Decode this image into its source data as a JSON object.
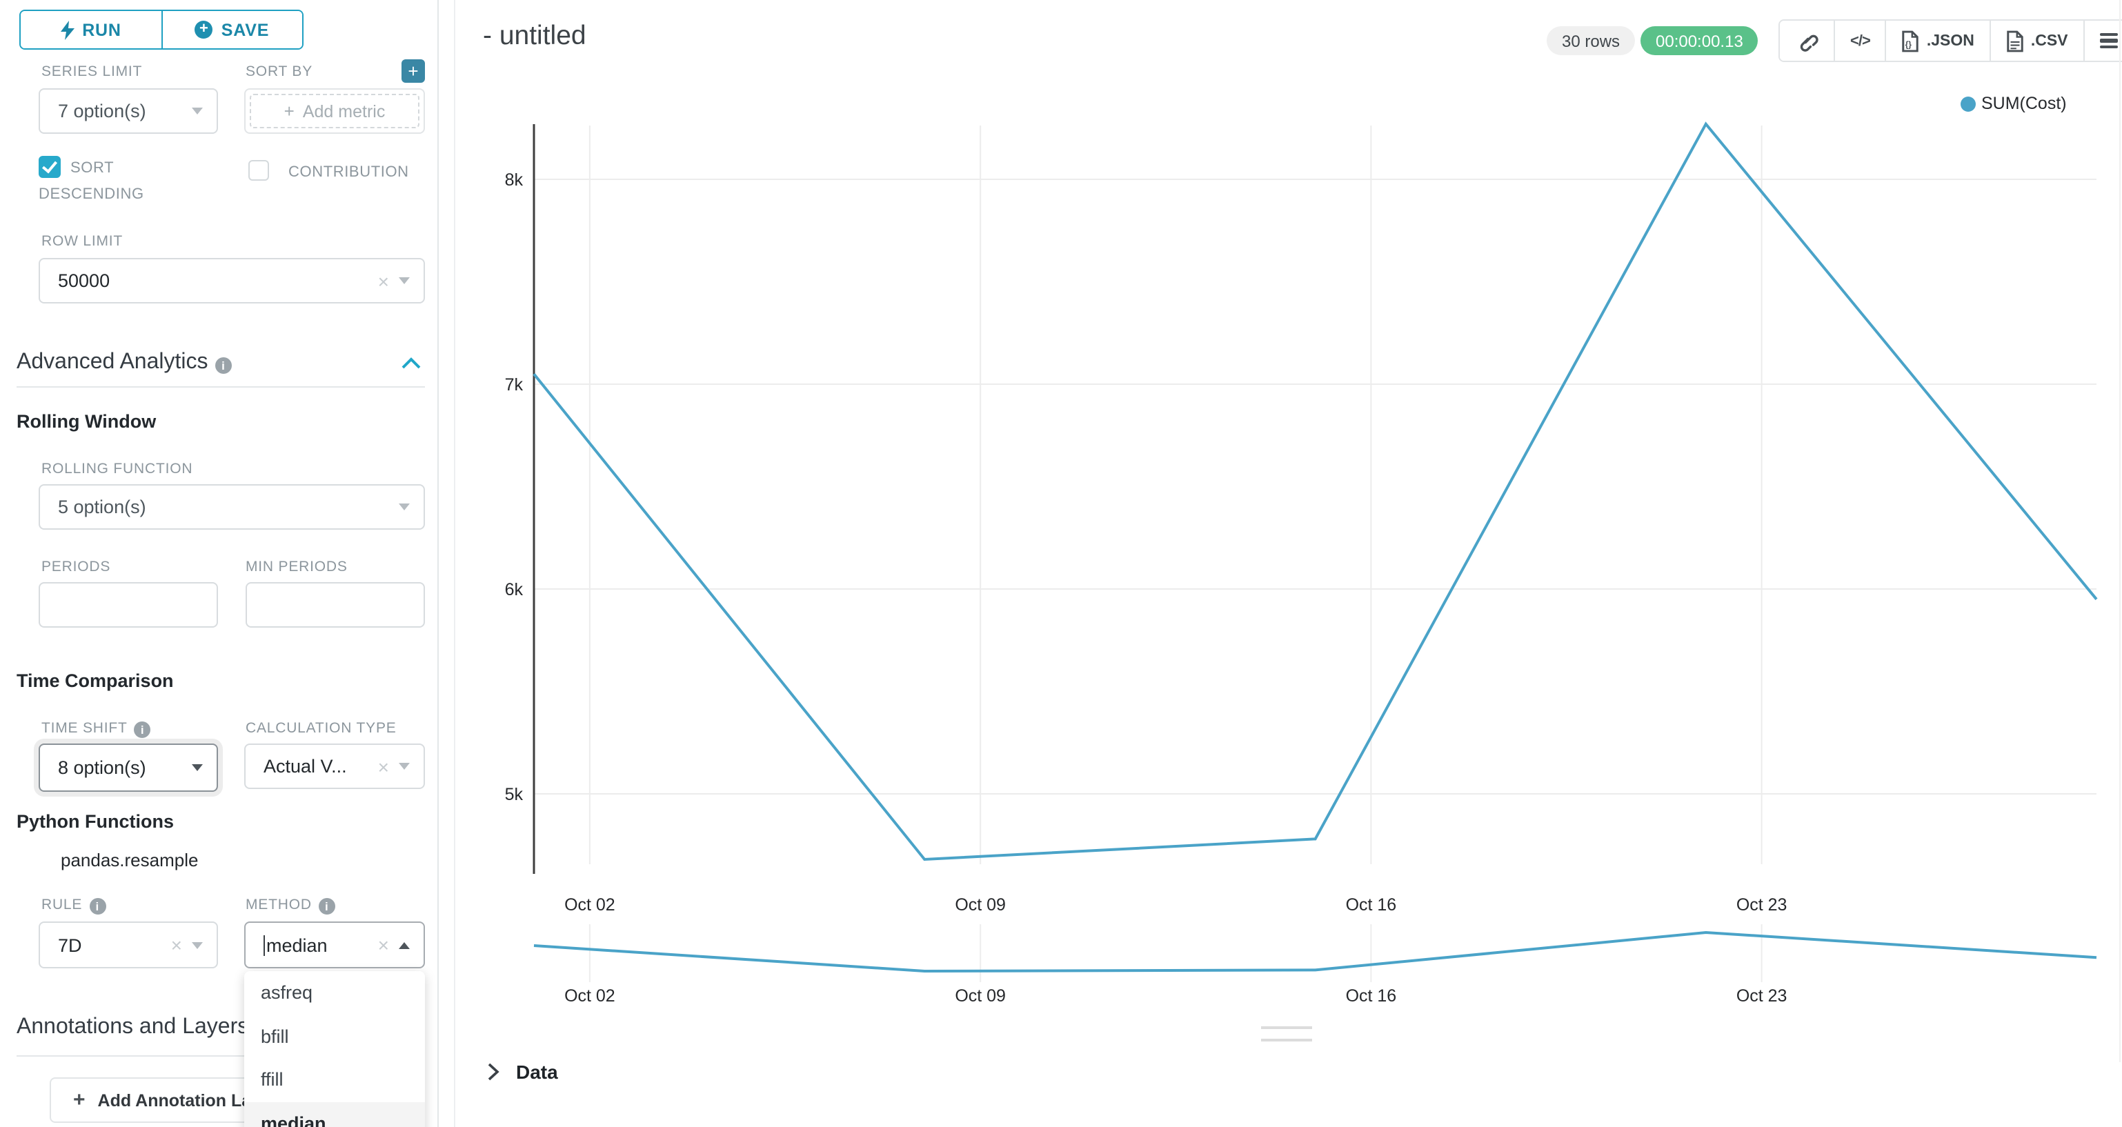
{
  "toolbar": {
    "run": "RUN",
    "save": "SAVE"
  },
  "controls": {
    "series_limit": {
      "label": "SERIES LIMIT",
      "value": "7 option(s)"
    },
    "sort_by": {
      "label": "SORT BY",
      "placeholder": "Add metric"
    },
    "sort_descending": {
      "label": "SORT DESCENDING",
      "checked": true
    },
    "contribution": {
      "label": "CONTRIBUTION",
      "checked": false
    },
    "row_limit": {
      "label": "ROW LIMIT",
      "value": "50000"
    }
  },
  "advanced": {
    "title": "Advanced Analytics",
    "rolling_title": "Rolling Window",
    "rolling_function": {
      "label": "ROLLING FUNCTION",
      "value": "5 option(s)"
    },
    "periods": {
      "label": "PERIODS",
      "value": ""
    },
    "min_periods": {
      "label": "MIN PERIODS",
      "value": ""
    },
    "time_comparison_title": "Time Comparison",
    "time_shift": {
      "label": "TIME SHIFT",
      "value": "8 option(s)"
    },
    "calculation_type": {
      "label": "CALCULATION TYPE",
      "value": "Actual V..."
    },
    "python_functions_title": "Python Functions",
    "resample_subtitle": "pandas.resample",
    "rule": {
      "label": "RULE",
      "value": "7D"
    },
    "method": {
      "label": "METHOD",
      "value": "median",
      "options": [
        "asfreq",
        "bfill",
        "ffill",
        "median"
      ],
      "selected": "median"
    }
  },
  "annotations": {
    "title": "Annotations and Layers",
    "add_label": "Add Annotation Layer"
  },
  "header": {
    "title": "- untitled",
    "rows_badge": "30 rows",
    "timer_badge": "00:00:00.13",
    "export_json": ".JSON",
    "export_csv": ".CSV"
  },
  "legend": {
    "label": "SUM(Cost)",
    "color": "#4AA3C8"
  },
  "data_panel": {
    "title": "Data"
  },
  "chart_data": {
    "type": "line",
    "title": "",
    "xlabel": "",
    "ylabel": "",
    "x_tick_labels": [
      "Oct 02",
      "Oct 09",
      "Oct 16",
      "Oct 23"
    ],
    "y_tick_labels": [
      "8k",
      "7k",
      "6k",
      "5k"
    ],
    "y_gridline_values": [
      8000,
      7000,
      6000,
      5000
    ],
    "ylim": [
      4650,
      8270
    ],
    "grid": true,
    "legend_position": "top-right",
    "line_color": "#4AA3C8",
    "series": [
      {
        "name": "SUM(Cost)",
        "points": [
          {
            "x": "Oct 01",
            "y": 7050
          },
          {
            "x": "Oct 08",
            "y": 4680
          },
          {
            "x": "Oct 15",
            "y": 4780
          },
          {
            "x": "Oct 22",
            "y": 8270
          },
          {
            "x": "Oct 29",
            "y": 5950
          }
        ]
      }
    ],
    "mini_preview": {
      "note": "same series shown as zoom preview strip below main chart"
    }
  }
}
